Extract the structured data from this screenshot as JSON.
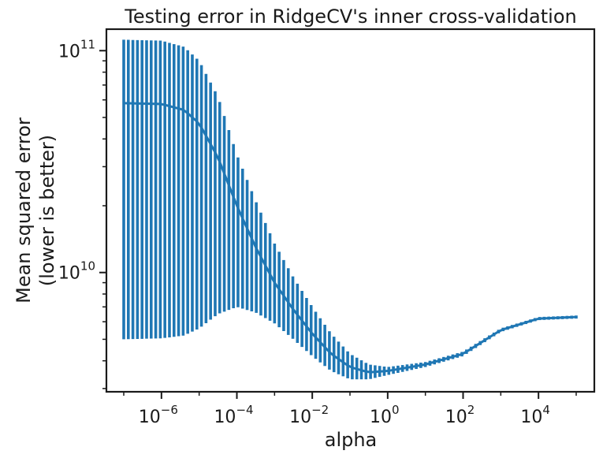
{
  "chart_data": {
    "type": "errorbar",
    "title": "Testing error in RidgeCV's inner cross-validation",
    "xlabel": "alpha",
    "ylabel_line1": "Mean squared error",
    "ylabel_line2": "(lower is better)",
    "xscale": "log",
    "yscale": "log",
    "xlim": [
      1e-07,
      100000.0
    ],
    "ylim": [
      2900000000.0,
      125000000000.0
    ],
    "grid": false,
    "series_color": "#1f77b4",
    "x_ticks": [
      {
        "base": "10",
        "exp": "−6",
        "value": 1e-06
      },
      {
        "base": "10",
        "exp": "−4",
        "value": 0.0001
      },
      {
        "base": "10",
        "exp": "−2",
        "value": 0.01
      },
      {
        "base": "10",
        "exp": "0",
        "value": 1
      },
      {
        "base": "10",
        "exp": "2",
        "value": 100
      },
      {
        "base": "10",
        "exp": "4",
        "value": 10000
      }
    ],
    "y_ticks": [
      {
        "base": "10",
        "exp": "10",
        "value": 10000000000.0
      },
      {
        "base": "10",
        "exp": "11",
        "value": 100000000000.0
      }
    ],
    "x_range_log10": [
      -7,
      5
    ],
    "n_points": 100,
    "anchors": [
      {
        "log10_alpha": -7.0,
        "mean": 58000000000.0,
        "upper": 112000000000.0,
        "lower": 5000000000.0
      },
      {
        "log10_alpha": -6.0,
        "mean": 57500000000.0,
        "upper": 111000000000.0,
        "lower": 5050000000.0
      },
      {
        "log10_alpha": -5.4,
        "mean": 54000000000.0,
        "upper": 104000000000.0,
        "lower": 5200000000.0
      },
      {
        "log10_alpha": -5.0,
        "mean": 47000000000.0,
        "upper": 90000000000.0,
        "lower": 5600000000.0
      },
      {
        "log10_alpha": -4.5,
        "mean": 33000000000.0,
        "upper": 62000000000.0,
        "lower": 6500000000.0
      },
      {
        "log10_alpha": -4.0,
        "mean": 20000000000.0,
        "upper": 34000000000.0,
        "lower": 7000000000.0
      },
      {
        "log10_alpha": -3.5,
        "mean": 13000000000.0,
        "upper": 21000000000.0,
        "lower": 6600000000.0
      },
      {
        "log10_alpha": -3.0,
        "mean": 9000000000.0,
        "upper": 13500000000.0,
        "lower": 5900000000.0
      },
      {
        "log10_alpha": -2.5,
        "mean": 6800000000.0,
        "upper": 9500000000.0,
        "lower": 5000000000.0
      },
      {
        "log10_alpha": -2.0,
        "mean": 5300000000.0,
        "upper": 7000000000.0,
        "lower": 4200000000.0
      },
      {
        "log10_alpha": -1.5,
        "mean": 4300000000.0,
        "upper": 5300000000.0,
        "lower": 3600000000.0
      },
      {
        "log10_alpha": -1.0,
        "mean": 3750000000.0,
        "upper": 4300000000.0,
        "lower": 3300000000.0
      },
      {
        "log10_alpha": -0.5,
        "mean": 3550000000.0,
        "upper": 3850000000.0,
        "lower": 3300000000.0
      },
      {
        "log10_alpha": 0.0,
        "mean": 3600000000.0,
        "upper": 3750000000.0,
        "lower": 3450000000.0
      },
      {
        "log10_alpha": 1.0,
        "mean": 3850000000.0,
        "upper": 3950000000.0,
        "lower": 3750000000.0
      },
      {
        "log10_alpha": 2.0,
        "mean": 4300000000.0,
        "upper": 4400000000.0,
        "lower": 4200000000.0
      },
      {
        "log10_alpha": 3.0,
        "mean": 5500000000.0,
        "upper": 5600000000.0,
        "lower": 5400000000.0
      },
      {
        "log10_alpha": 4.0,
        "mean": 6200000000.0,
        "upper": 6300000000.0,
        "lower": 6100000000.0
      },
      {
        "log10_alpha": 5.0,
        "mean": 6300000000.0,
        "upper": 6400000000.0,
        "lower": 6200000000.0
      }
    ]
  }
}
